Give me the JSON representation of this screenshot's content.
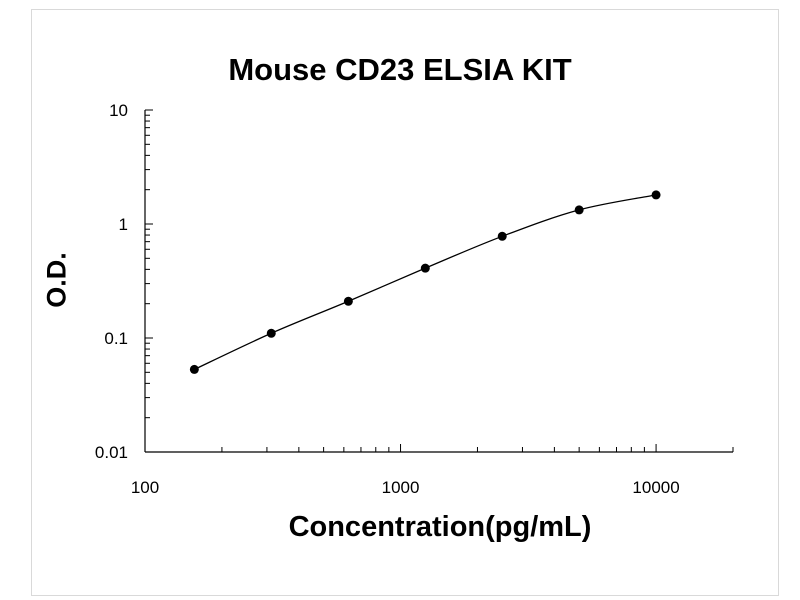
{
  "chart_data": {
    "type": "scatter",
    "title": "Mouse CD23 ELSIA KIT",
    "xlabel": "Concentration(pg/mL)",
    "ylabel": "O.D.",
    "x_scale": "log",
    "y_scale": "log",
    "xlim": [
      100,
      20000
    ],
    "ylim": [
      0.01,
      10
    ],
    "x_ticks": [
      100,
      1000,
      10000
    ],
    "x_tick_labels": [
      "100",
      "1000",
      "10000"
    ],
    "y_ticks": [
      0.01,
      0.1,
      1,
      10
    ],
    "y_tick_labels": [
      "0.01",
      "0.1",
      "1",
      "10"
    ],
    "grid": false,
    "fit_curve": true,
    "points": [
      {
        "x": 156,
        "y": 0.053
      },
      {
        "x": 312,
        "y": 0.11
      },
      {
        "x": 625,
        "y": 0.21
      },
      {
        "x": 1250,
        "y": 0.41
      },
      {
        "x": 2500,
        "y": 0.78
      },
      {
        "x": 5000,
        "y": 1.33
      },
      {
        "x": 10000,
        "y": 1.8
      }
    ],
    "colors": {
      "marker": "#000000",
      "line": "#000000",
      "axis": "#000000"
    }
  }
}
